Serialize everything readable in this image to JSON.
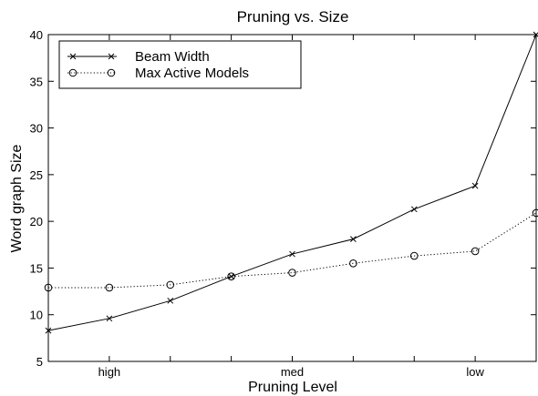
{
  "chart_data": {
    "type": "line",
    "title": "Pruning vs. Size",
    "xlabel": "Pruning Level",
    "ylabel": "Word graph Size",
    "x": [
      1,
      2,
      3,
      4,
      5,
      6,
      7,
      8,
      9
    ],
    "xlim": [
      1,
      9
    ],
    "x_ticks": [
      2,
      5,
      8
    ],
    "x_tick_labels": [
      "high",
      "med",
      "low"
    ],
    "x_minor_ticks": [
      3,
      4,
      6,
      7
    ],
    "ylim": [
      5,
      40
    ],
    "y_ticks": [
      5,
      10,
      15,
      20,
      25,
      30,
      35,
      40
    ],
    "grid": false,
    "legend_position": "top-left",
    "series": [
      {
        "name": "Beam Width",
        "marker": "x",
        "line_style": "solid",
        "color": "#000000",
        "values": [
          8.3,
          9.6,
          11.5,
          14.1,
          16.5,
          18.1,
          21.3,
          23.8,
          40.0
        ]
      },
      {
        "name": "Max Active Models",
        "marker": "o",
        "line_style": "dotted",
        "color": "#000000",
        "values": [
          12.9,
          12.9,
          13.2,
          14.1,
          14.5,
          15.5,
          16.3,
          16.8,
          20.9
        ]
      }
    ]
  }
}
